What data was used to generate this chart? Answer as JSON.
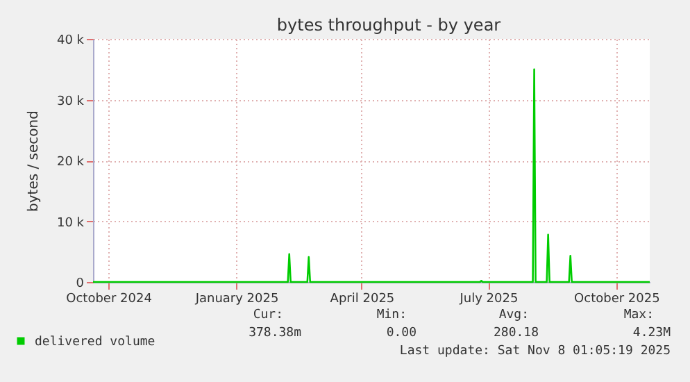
{
  "chart_data": {
    "type": "line",
    "title": "bytes throughput - by year",
    "ylabel": "bytes / second",
    "x": [
      "2024-10-04",
      "2025-02-21",
      "2025-02-22",
      "2025-02-23",
      "2025-03-07",
      "2025-03-08",
      "2025-03-09",
      "2025-07-09",
      "2025-07-10",
      "2025-07-11",
      "2025-08-16",
      "2025-08-17",
      "2025-08-18",
      "2025-08-26",
      "2025-08-27",
      "2025-08-28",
      "2025-09-11",
      "2025-09-12",
      "2025-09-13",
      "2025-11-08"
    ],
    "series": [
      {
        "name": "delivered volume",
        "color": "#00cc00",
        "values": [
          0,
          0,
          4600,
          0,
          0,
          4100,
          0,
          0,
          200,
          0,
          0,
          35000,
          0,
          0,
          7800,
          0,
          0,
          4300,
          0,
          0
        ]
      }
    ],
    "xlim": [
      "2024-10-04",
      "2025-11-08"
    ],
    "xticks": [
      {
        "value": "2024-10-15",
        "label": "October 2024"
      },
      {
        "value": "2025-01-15",
        "label": "January 2025"
      },
      {
        "value": "2025-04-15",
        "label": "April 2025"
      },
      {
        "value": "2025-07-15",
        "label": "July 2025"
      },
      {
        "value": "2025-10-15",
        "label": "October 2025"
      }
    ],
    "ylim": [
      0,
      40000
    ],
    "yticks": [
      {
        "value": 0,
        "label": "0"
      },
      {
        "value": 10000,
        "label": "10 k"
      },
      {
        "value": 20000,
        "label": "20 k"
      },
      {
        "value": 30000,
        "label": "30 k"
      },
      {
        "value": 40000,
        "label": "40 k"
      }
    ],
    "grid": true,
    "legend": "bottom left",
    "marker": "none",
    "line_style": "solid",
    "annotations": [
      "Cur:",
      "Min:",
      "Avg:",
      "Max:",
      "378.38m",
      "0.00",
      "280.18",
      "4.23M",
      "Last update: Sat Nov  8 01:05:19 2025"
    ]
  }
}
